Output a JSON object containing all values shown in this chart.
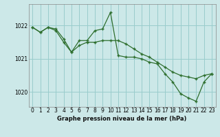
{
  "title": "Graphe pression niveau de la mer (hPa)",
  "background_color": "#cce8e8",
  "grid_color": "#99cccc",
  "line_color": "#2d6e2d",
  "marker_color": "#2d6e2d",
  "ylim": [
    1019.55,
    1022.65
  ],
  "yticks": [
    1020,
    1021,
    1022
  ],
  "xlim": [
    -0.5,
    23.5
  ],
  "xticks": [
    0,
    1,
    2,
    3,
    4,
    5,
    6,
    7,
    8,
    9,
    10,
    11,
    12,
    13,
    14,
    15,
    16,
    17,
    18,
    19,
    20,
    21,
    22,
    23
  ],
  "series1_x": [
    0,
    1,
    2,
    3,
    4,
    5,
    6,
    7,
    8,
    9,
    10,
    11,
    12,
    13,
    14,
    15,
    16,
    17,
    18,
    19,
    20,
    21,
    22,
    23
  ],
  "series1_y": [
    1021.95,
    1021.8,
    1021.95,
    1021.85,
    1021.5,
    1021.2,
    1021.4,
    1021.5,
    1021.5,
    1021.55,
    1021.55,
    1021.55,
    1021.45,
    1021.3,
    1021.15,
    1021.05,
    1020.9,
    1020.75,
    1020.6,
    1020.5,
    1020.45,
    1020.4,
    1020.5,
    1020.55
  ],
  "series2_x": [
    0,
    1,
    2,
    3,
    4,
    5,
    6,
    7,
    8,
    9,
    10,
    11,
    12,
    13,
    14,
    15,
    16,
    17,
    18,
    19,
    20,
    21,
    22,
    23
  ],
  "series2_y": [
    1021.95,
    1021.8,
    1021.95,
    1021.9,
    1021.6,
    1021.2,
    1021.55,
    1021.55,
    1021.85,
    1021.9,
    1022.4,
    1021.1,
    1021.05,
    1021.05,
    1021.0,
    1020.9,
    1020.85,
    1020.55,
    1020.3,
    1019.95,
    1019.82,
    1019.72,
    1020.3,
    1020.55
  ]
}
